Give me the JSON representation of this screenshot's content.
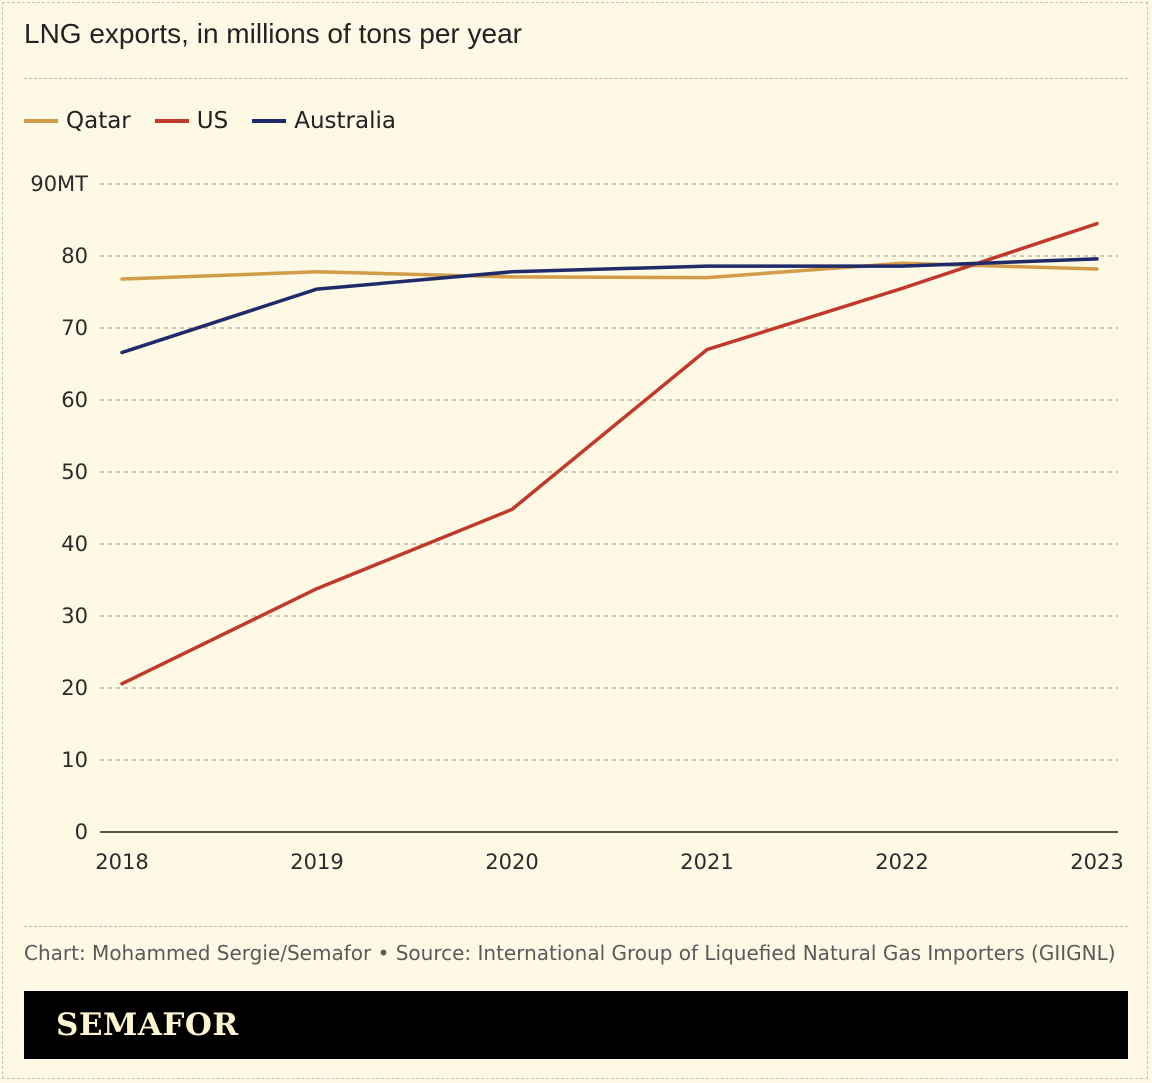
{
  "chart_title": "LNG exports, in millions of tons per year",
  "footer": {
    "credit": "Chart: Mohammed Sergie/Semafor • Source: International Group of Liquefied Natural Gas Importers (GIIGNL)",
    "brand": "SEMAFOR"
  },
  "colors": {
    "background": "#fdf9e5",
    "qatar": "#d29c4a",
    "us": "#c0392b",
    "australia": "#1f2a6b"
  },
  "chart_data": {
    "type": "line",
    "title": "LNG exports, in millions of tons per year",
    "x": [
      "2018",
      "2019",
      "2020",
      "2021",
      "2022",
      "2023"
    ],
    "y_ticks": [
      "0",
      "10",
      "20",
      "30",
      "40",
      "50",
      "60",
      "70",
      "80",
      "90MT"
    ],
    "ylim": [
      0,
      90
    ],
    "grid": true,
    "legend_position": "top-left",
    "series": [
      {
        "name": "Qatar",
        "color": "#d29c4a",
        "values": [
          76.8,
          77.8,
          77.1,
          77.0,
          79.0,
          78.2
        ]
      },
      {
        "name": "US",
        "color": "#c0392b",
        "values": [
          20.6,
          33.8,
          44.8,
          67.0,
          75.5,
          84.5
        ]
      },
      {
        "name": "Australia",
        "color": "#1f2a6b",
        "values": [
          66.6,
          75.4,
          77.8,
          78.6,
          78.6,
          79.6
        ]
      }
    ]
  }
}
